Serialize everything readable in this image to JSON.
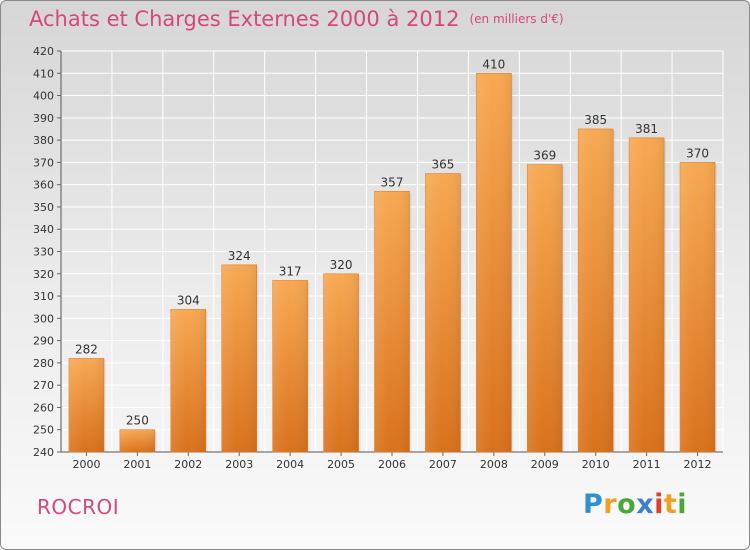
{
  "chart_data": {
    "type": "bar",
    "title": "Achats et Charges Externes 2000 à 2012",
    "subtitle": "(en milliers d'€)",
    "categories": [
      "2000",
      "2001",
      "2002",
      "2003",
      "2004",
      "2005",
      "2006",
      "2007",
      "2008",
      "2009",
      "2010",
      "2011",
      "2012"
    ],
    "values": [
      282,
      250,
      304,
      324,
      317,
      320,
      357,
      365,
      410,
      369,
      385,
      381,
      370
    ],
    "ylim": [
      240,
      420
    ],
    "yticks": [
      240,
      250,
      260,
      270,
      280,
      290,
      300,
      310,
      320,
      330,
      340,
      350,
      360,
      370,
      380,
      390,
      400,
      410,
      420
    ],
    "grid": true,
    "bar_color": "#f08a30"
  },
  "footer": {
    "town": "ROCROI",
    "brand": "Proxiti"
  },
  "colors": {
    "title": "#d4487e",
    "bar_light": "#f7a85a",
    "bar_dark": "#d8721e"
  }
}
